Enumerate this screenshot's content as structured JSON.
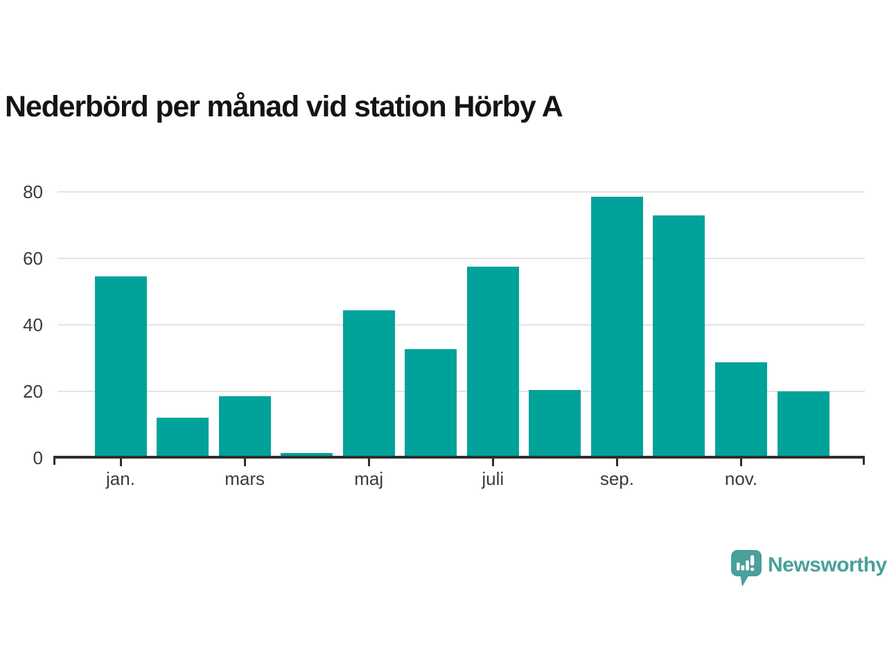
{
  "page": {
    "title": "Nederbörd per månad vid station Hörby A"
  },
  "chart_data": {
    "type": "bar",
    "title": "Nederbörd per månad vid station Hörby A",
    "xlabel": "",
    "ylabel": "",
    "values": [
      54.5,
      12.1,
      18.6,
      1.5,
      44.3,
      32.7,
      57.6,
      20.4,
      78.6,
      73.0,
      28.8,
      19.9
    ],
    "x_tick_labels": [
      "jan.",
      "mars",
      "maj",
      "juli",
      "sep.",
      "nov."
    ],
    "x_tick_bar_indices": [
      0,
      2,
      4,
      6,
      8,
      10
    ],
    "y_ticks": [
      0,
      20,
      40,
      60,
      80
    ],
    "ylim": [
      0,
      80
    ],
    "grid": "horizontal-light",
    "legend": "none",
    "bar_color": "#00a29a"
  },
  "branding": {
    "logo_text": "Newsworthy",
    "logo_icon": "newsworthy-speech-bubble-bar-chart-icon",
    "logo_color": "#4aa09a"
  },
  "colors": {
    "background": "#ffffff",
    "bar": "#00a29a",
    "axis": "#2e2e2e",
    "tick_label": "#3b3b3b",
    "gridline": "#e3e3e3",
    "title": "#141414"
  }
}
